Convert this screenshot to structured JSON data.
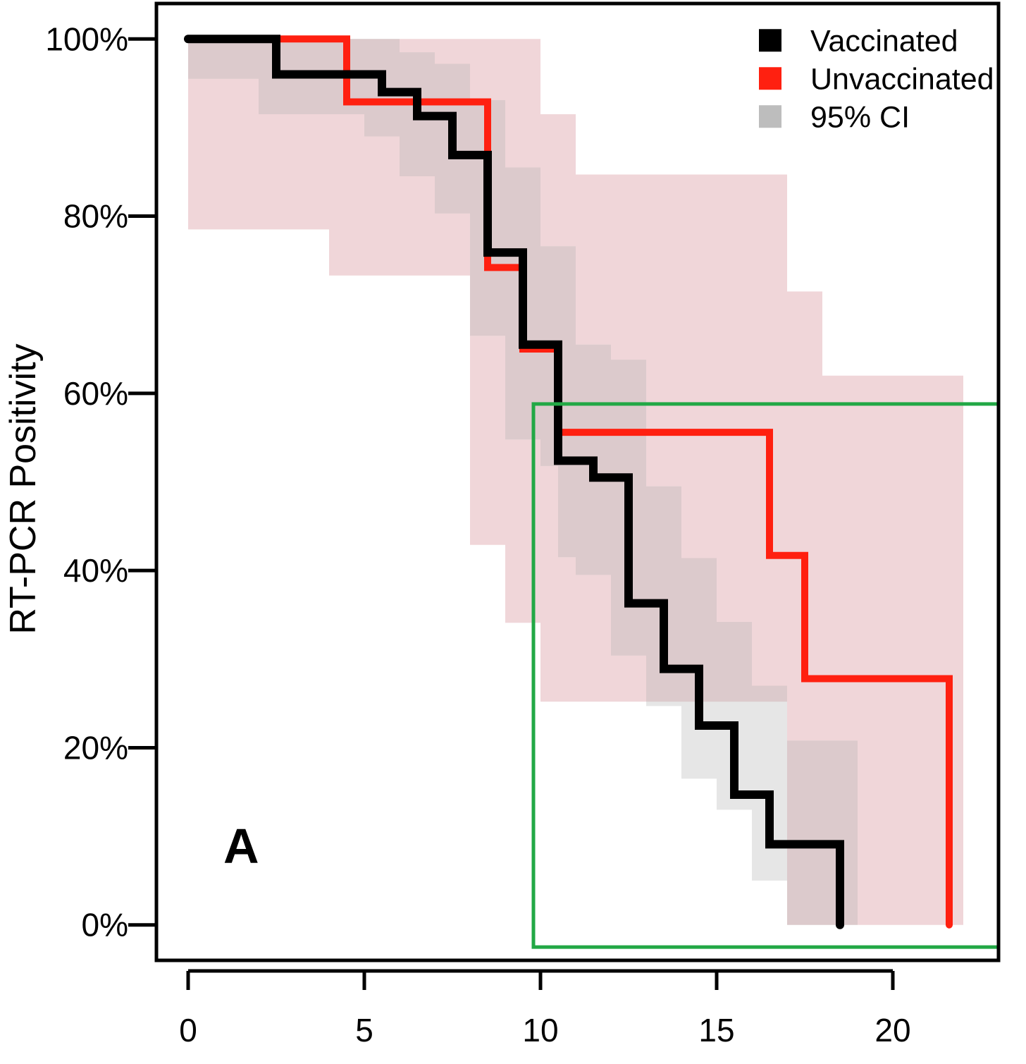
{
  "chart_data": {
    "type": "line",
    "subtype": "kaplan-meier-step",
    "title": "",
    "panel_label": "A",
    "xlabel": "",
    "ylabel": "RT-PCR Positivity",
    "xlim": [
      -0.9,
      23
    ],
    "ylim": [
      -4,
      104
    ],
    "x_ticks": [
      0,
      5,
      10,
      15,
      20
    ],
    "x_tick_labels": [
      "0",
      "5",
      "10",
      "15",
      "20"
    ],
    "y_ticks": [
      0,
      20,
      40,
      60,
      80,
      100
    ],
    "y_tick_labels": [
      "0%",
      "20%",
      "40%",
      "60%",
      "80%",
      "100%"
    ],
    "grid": false,
    "legend": {
      "position": "top-right",
      "entries": [
        {
          "label": "Vaccinated",
          "color": "#000000"
        },
        {
          "label": "Unvaccinated",
          "color": "#ff2010"
        },
        {
          "label": "95% CI",
          "color": "#bdbdbd"
        }
      ]
    },
    "colors": {
      "vaccinated": "#000000",
      "unvaccinated": "#ff2010",
      "ci_unvaccinated": "#f0d6d9",
      "ci_vaccinated_only": "#e6e6e6",
      "ci_overlap": "#dccacc",
      "highlight_box": "#22a845"
    },
    "series": [
      {
        "name": "Vaccinated",
        "color": "#000000",
        "x": [
          0,
          2.5,
          5.5,
          6.5,
          7.5,
          8.5,
          9.5,
          10.5,
          11.5,
          12.5,
          13.5,
          14.5,
          15.5,
          16.5,
          18.5
        ],
        "y": [
          100,
          96,
          94,
          91.3,
          86.9,
          75.9,
          65.5,
          52.4,
          50.5,
          36.3,
          28.9,
          22.5,
          14.7,
          9.1,
          0
        ],
        "ci_x": [
          0,
          2,
          4.5,
          5,
          6,
          7,
          8,
          9,
          10,
          10.5,
          11,
          12,
          13,
          14,
          15,
          16,
          17,
          19
        ],
        "ci_lo": [
          95.5,
          91.5,
          91.5,
          89,
          84.5,
          80.3,
          66.5,
          54.8,
          51.8,
          41.5,
          39.5,
          30.4,
          24.7,
          16.5,
          13,
          5,
          0,
          0
        ],
        "ci_hi": [
          100,
          100,
          100,
          100,
          98.5,
          97.2,
          93.1,
          85.5,
          76.6,
          76.6,
          65.5,
          63.8,
          49.5,
          41.4,
          34.2,
          27,
          20.8,
          20.8
        ]
      },
      {
        "name": "Unvaccinated",
        "color": "#ff2010",
        "x": [
          0,
          4.5,
          8.5,
          9.5,
          10.5,
          16.5,
          17.5,
          21.6
        ],
        "y": [
          100,
          92.9,
          74.2,
          65,
          55.6,
          41.7,
          27.8,
          0
        ],
        "ci_x": [
          0,
          4,
          8,
          9,
          10,
          11,
          17,
          18,
          22
        ],
        "ci_lo": [
          78.5,
          73.3,
          42.9,
          34.1,
          25.2,
          25.2,
          0,
          0,
          0
        ],
        "ci_hi": [
          100,
          100,
          100,
          100,
          91.5,
          84.7,
          71.5,
          62,
          62
        ]
      }
    ],
    "annotations": [
      {
        "type": "highlight-rectangle",
        "color": "#22a845",
        "x_range": [
          9.8,
          23
        ],
        "y_range": [
          -2.5,
          58.8
        ]
      }
    ]
  }
}
